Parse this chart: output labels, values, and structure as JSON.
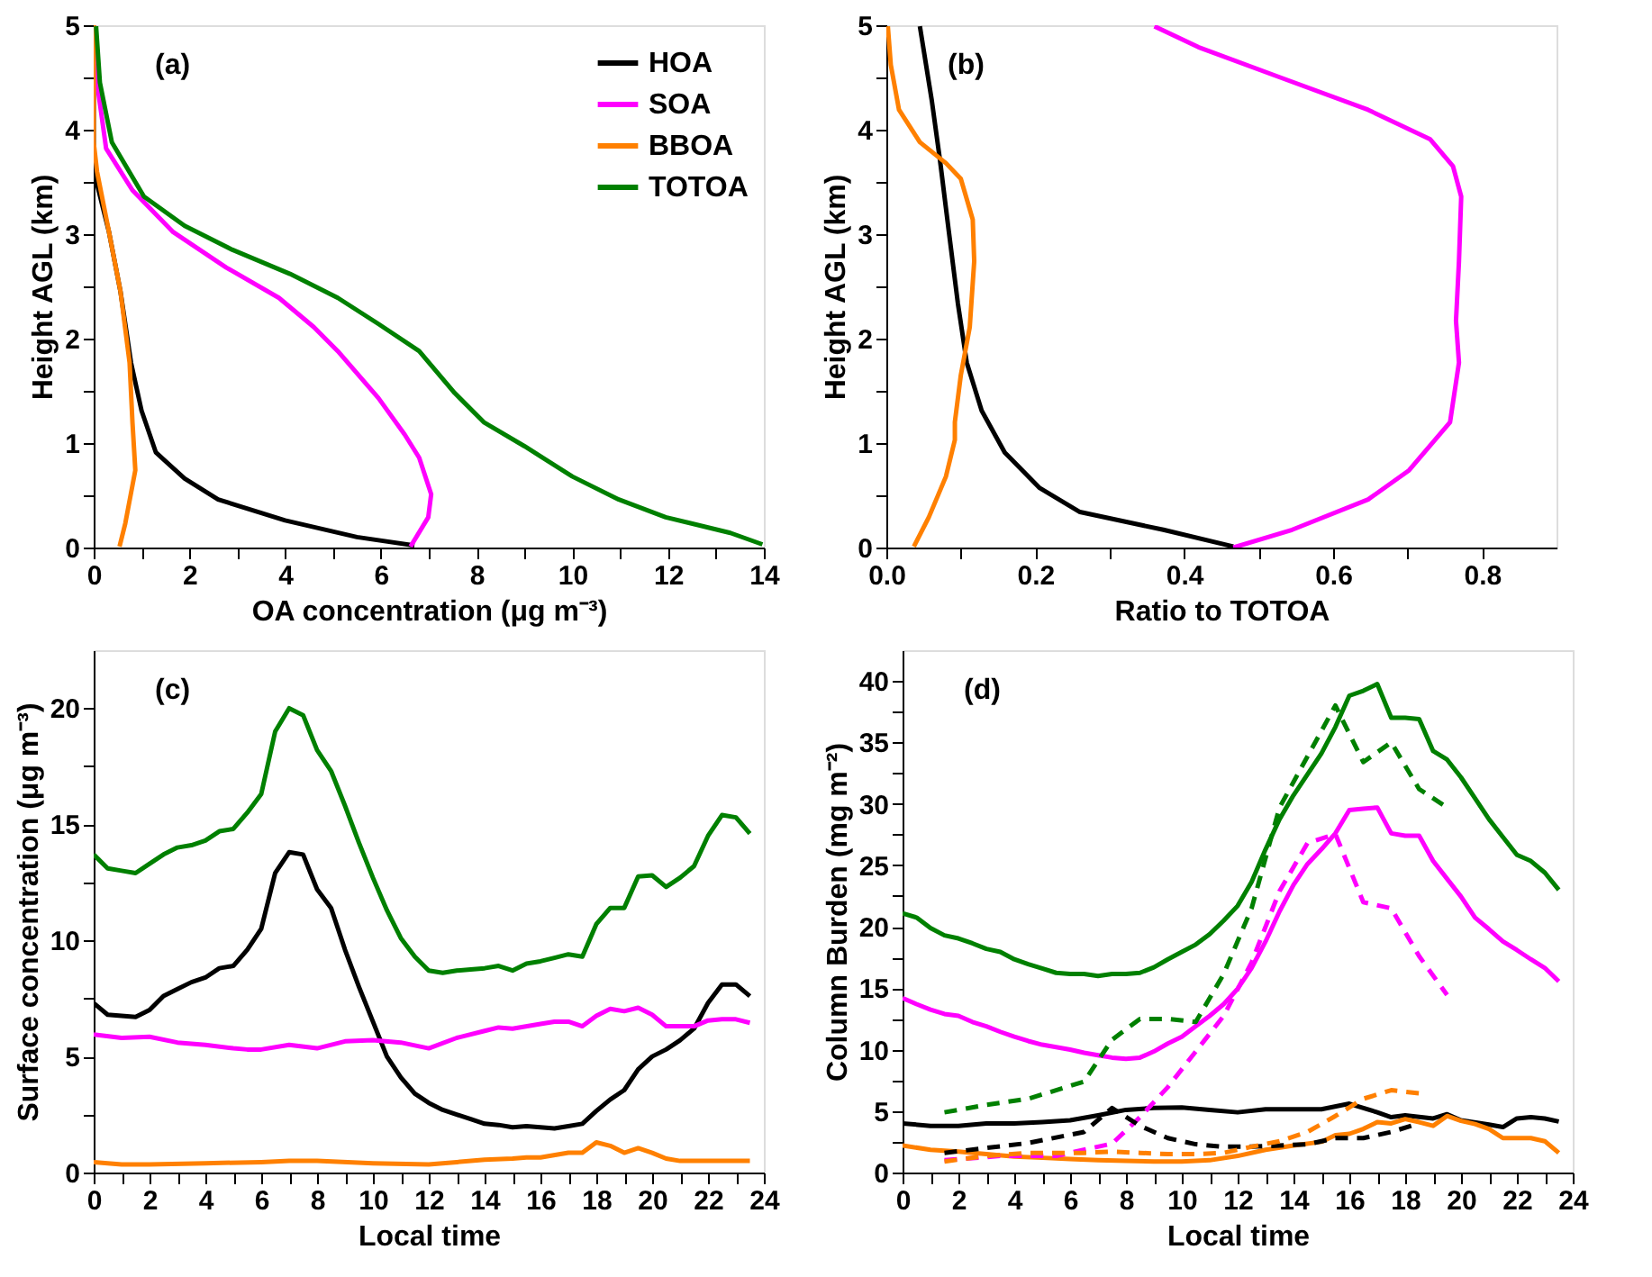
{
  "chart_data": [
    {
      "type": "line",
      "xlabel": "OA concentration (μg m⁻³)",
      "ylabel": "Height AGL (km)",
      "annotations": [
        "(a)"
      ],
      "legend": "top right",
      "xlim": [
        0,
        14
      ],
      "ylim": [
        0,
        5
      ],
      "xticks": [
        0,
        {
          "value": 1,
          "label": null
        },
        2,
        {
          "value": 3,
          "label": null
        },
        4,
        {
          "value": 5,
          "label": null
        },
        6,
        {
          "value": 7,
          "label": null
        },
        8,
        {
          "value": 9,
          "label": null
        },
        10,
        {
          "value": 11,
          "label": null
        },
        12,
        {
          "value": 13,
          "label": null
        },
        14
      ],
      "yticks": [
        0,
        {
          "value": 0.5,
          "label": null
        },
        1,
        {
          "value": 1.5,
          "label": null
        },
        2,
        {
          "value": 2.5,
          "label": null
        },
        3,
        {
          "value": 3.5,
          "label": null
        },
        4,
        {
          "value": 4.5,
          "label": null
        },
        5
      ],
      "series": [
        {
          "name": "HOA",
          "color": "#000000",
          "x": [
            6.7,
            5.5,
            4.0,
            2.6,
            1.9,
            1.3,
            1.0,
            0.78,
            0.56,
            0.32,
            0.07,
            0.0,
            0.0
          ],
          "values": [
            0.02,
            0.1,
            0.26,
            0.46,
            0.66,
            0.91,
            1.31,
            1.77,
            2.45,
            3.02,
            3.48,
            3.6,
            5.0
          ]
        },
        {
          "name": "SOA",
          "color": "#ff00ff",
          "x": [
            6.62,
            6.99,
            7.05,
            6.8,
            6.5,
            5.95,
            5.1,
            4.6,
            3.87,
            2.77,
            1.66,
            0.81,
            0.26,
            0.07,
            0.01
          ],
          "values": [
            0.01,
            0.29,
            0.51,
            0.86,
            1.08,
            1.43,
            1.88,
            2.11,
            2.39,
            2.68,
            3.02,
            3.42,
            3.82,
            4.45,
            4.96
          ]
        },
        {
          "name": "BBOA",
          "color": "#ff8000",
          "x": [
            0.54,
            0.66,
            0.87,
            0.81,
            0.75,
            0.56,
            0.32,
            0.07,
            0.0,
            0.0
          ],
          "values": [
            0.01,
            0.23,
            0.74,
            1.2,
            1.77,
            2.45,
            3.02,
            3.6,
            3.88,
            5.0
          ]
        },
        {
          "name": "TOTOA",
          "color": "#008000",
          "x": [
            13.97,
            13.3,
            11.95,
            10.97,
            10.0,
            9.0,
            8.15,
            7.54,
            6.8,
            5.95,
            5.1,
            4.1,
            2.9,
            1.9,
            1.05,
            0.38,
            0.13,
            0.05
          ],
          "values": [
            0.03,
            0.14,
            0.29,
            0.46,
            0.68,
            0.97,
            1.2,
            1.48,
            1.88,
            2.14,
            2.39,
            2.62,
            2.85,
            3.08,
            3.36,
            3.88,
            4.45,
            4.99
          ]
        }
      ]
    },
    {
      "type": "line",
      "xlabel": "Ratio to TOTOA",
      "ylabel": "Height AGL (km)",
      "annotations": [
        "(b)"
      ],
      "xlim": [
        0,
        0.9
      ],
      "ylim": [
        0,
        5
      ],
      "xticks": [
        {
          "value": 0,
          "label": "0.0"
        },
        {
          "value": 0.1,
          "label": null
        },
        0.2,
        {
          "value": 0.3,
          "label": null
        },
        0.4,
        {
          "value": 0.5,
          "label": null
        },
        0.6,
        {
          "value": 0.7,
          "label": null
        },
        0.8
      ],
      "yticks": [
        0,
        {
          "value": 0.5,
          "label": null
        },
        1,
        {
          "value": 1.5,
          "label": null
        },
        2,
        {
          "value": 2.5,
          "label": null
        },
        3,
        {
          "value": 3.5,
          "label": null
        },
        4,
        {
          "value": 4.5,
          "label": null
        },
        5
      ],
      "series": [
        {
          "color": "#000000",
          "x": [
            0.466,
            0.372,
            0.26,
            0.206,
            0.159,
            0.128,
            0.108,
            0.096,
            0.084,
            0.072,
            0.061,
            0.045
          ],
          "values": [
            0.01,
            0.17,
            0.34,
            0.57,
            0.91,
            1.31,
            1.77,
            2.34,
            3.02,
            3.71,
            4.28,
            4.99
          ]
        },
        {
          "color": "#ff00ff",
          "x": [
            0.466,
            0.545,
            0.647,
            0.702,
            0.757,
            0.769,
            0.765,
            0.769,
            0.772,
            0.761,
            0.73,
            0.647,
            0.529,
            0.419,
            0.36
          ],
          "values": [
            0.0,
            0.17,
            0.46,
            0.74,
            1.2,
            1.77,
            2.17,
            2.74,
            3.36,
            3.65,
            3.91,
            4.19,
            4.5,
            4.79,
            4.99
          ]
        },
        {
          "color": "#ff8000",
          "x": [
            0.037,
            0.057,
            0.08,
            0.092,
            0.092,
            0.1,
            0.112,
            0.118,
            0.116,
            0.1,
            0.08,
            0.045,
            0.017,
            0.006,
            0.002
          ],
          "values": [
            0.01,
            0.29,
            0.68,
            1.03,
            1.2,
            1.65,
            2.11,
            2.74,
            3.14,
            3.53,
            3.68,
            3.88,
            4.19,
            4.62,
            4.99
          ]
        }
      ]
    },
    {
      "type": "line",
      "xlabel": "Local time",
      "ylabel": "Surface concentration (μg m⁻³)",
      "annotations": [
        "(c)"
      ],
      "xlim": [
        0,
        24
      ],
      "ylim": [
        0,
        22.5
      ],
      "xticks": [
        0,
        {
          "value": 1,
          "label": null
        },
        2,
        {
          "value": 3,
          "label": null
        },
        4,
        {
          "value": 5,
          "label": null
        },
        6,
        {
          "value": 7,
          "label": null
        },
        8,
        {
          "value": 9,
          "label": null
        },
        10,
        {
          "value": 11,
          "label": null
        },
        12,
        {
          "value": 13,
          "label": null
        },
        14,
        {
          "value": 15,
          "label": null
        },
        16,
        {
          "value": 17,
          "label": null
        },
        18,
        {
          "value": 19,
          "label": null
        },
        20,
        {
          "value": 21,
          "label": null
        },
        22,
        {
          "value": 23,
          "label": null
        },
        24
      ],
      "yticks": [
        0,
        {
          "value": 2.5,
          "label": null
        },
        5,
        {
          "value": 7.5,
          "label": null
        },
        10,
        {
          "value": 12.5,
          "label": null
        },
        15,
        {
          "value": 17.5,
          "label": null
        },
        20
      ],
      "series": [
        {
          "color": "#008000",
          "x": [
            0,
            0.5,
            1,
            1.5,
            2,
            2.5,
            3,
            3.5,
            4,
            4.5,
            5,
            5.5,
            6,
            6.5,
            7,
            7.5,
            8,
            8.5,
            9,
            9.5,
            10,
            10.5,
            11,
            11.5,
            12,
            12.5,
            13,
            13.5,
            14,
            14.5,
            15,
            15.5,
            16,
            16.5,
            17,
            17.5,
            18,
            18.5,
            19,
            19.5,
            20,
            20.5,
            21,
            21.5,
            22,
            22.5,
            23,
            23.5
          ],
          "values": [
            13.7,
            13.1,
            13.0,
            12.9,
            13.3,
            13.7,
            14.0,
            14.1,
            14.3,
            14.7,
            14.8,
            15.5,
            16.3,
            19.0,
            20.0,
            19.7,
            18.2,
            17.3,
            15.8,
            14.2,
            12.7,
            11.3,
            10.1,
            9.3,
            8.7,
            8.6,
            8.7,
            8.75,
            8.8,
            8.9,
            8.7,
            9.0,
            9.1,
            9.25,
            9.4,
            9.3,
            10.7,
            11.4,
            11.4,
            12.75,
            12.8,
            12.3,
            12.7,
            13.2,
            14.5,
            15.4,
            15.3,
            14.6
          ]
        },
        {
          "color": "#000000",
          "x": [
            0,
            0.5,
            1,
            1.5,
            2,
            2.5,
            3,
            3.5,
            4,
            4.5,
            5,
            5.5,
            6,
            6.5,
            7,
            7.5,
            8,
            8.5,
            9,
            9.5,
            10,
            10.5,
            11,
            11.5,
            12,
            12.5,
            13,
            13.5,
            14,
            14.5,
            15,
            15.5,
            16,
            16.5,
            17,
            17.5,
            18,
            18.5,
            19,
            19.5,
            20,
            20.5,
            21,
            21.5,
            22,
            22.5,
            23,
            23.5
          ],
          "values": [
            7.3,
            6.8,
            6.75,
            6.7,
            7.0,
            7.6,
            7.9,
            8.2,
            8.4,
            8.8,
            8.9,
            9.6,
            10.5,
            12.9,
            13.8,
            13.7,
            12.2,
            11.4,
            9.6,
            8.0,
            6.5,
            5.0,
            4.1,
            3.4,
            3.0,
            2.7,
            2.5,
            2.3,
            2.1,
            2.05,
            1.95,
            2.0,
            1.95,
            1.9,
            2.0,
            2.1,
            2.65,
            3.15,
            3.55,
            4.45,
            5.0,
            5.3,
            5.7,
            6.2,
            7.3,
            8.1,
            8.1,
            7.6
          ]
        },
        {
          "color": "#ff00ff",
          "x": [
            0,
            1,
            2,
            3,
            4,
            5,
            5.5,
            6,
            7,
            8,
            9,
            10,
            11,
            12,
            13,
            14,
            14.5,
            15,
            16,
            16.5,
            17,
            17.5,
            18,
            18.5,
            19,
            19.5,
            20,
            20.5,
            21,
            21.5,
            22,
            22.5,
            23,
            23.5
          ],
          "values": [
            5.95,
            5.8,
            5.85,
            5.6,
            5.5,
            5.35,
            5.3,
            5.3,
            5.5,
            5.35,
            5.65,
            5.7,
            5.6,
            5.35,
            5.8,
            6.1,
            6.25,
            6.2,
            6.4,
            6.5,
            6.5,
            6.3,
            6.75,
            7.05,
            6.95,
            7.1,
            6.8,
            6.3,
            6.3,
            6.3,
            6.55,
            6.6,
            6.6,
            6.45
          ]
        },
        {
          "color": "#ff8000",
          "x": [
            0,
            1,
            2,
            4,
            6,
            7,
            8,
            10,
            12,
            13,
            14,
            15,
            15.5,
            16,
            17,
            17.5,
            18,
            18.5,
            19,
            19.5,
            20,
            20.5,
            21,
            22,
            23,
            23.5
          ],
          "values": [
            0.45,
            0.35,
            0.35,
            0.4,
            0.45,
            0.5,
            0.5,
            0.4,
            0.35,
            0.45,
            0.55,
            0.6,
            0.65,
            0.65,
            0.85,
            0.85,
            1.3,
            1.15,
            0.85,
            1.05,
            0.85,
            0.6,
            0.5,
            0.5,
            0.5,
            0.5
          ]
        }
      ]
    },
    {
      "type": "line",
      "xlabel": "Local time",
      "ylabel": "Column Burden (mg m⁻²)",
      "annotations": [
        "(d)"
      ],
      "xlim": [
        0,
        24
      ],
      "ylim": [
        0,
        42.5
      ],
      "xticks": [
        0,
        {
          "value": 1,
          "label": null
        },
        2,
        {
          "value": 3,
          "label": null
        },
        4,
        {
          "value": 5,
          "label": null
        },
        6,
        {
          "value": 7,
          "label": null
        },
        8,
        {
          "value": 9,
          "label": null
        },
        10,
        {
          "value": 11,
          "label": null
        },
        12,
        {
          "value": 13,
          "label": null
        },
        14,
        {
          "value": 15,
          "label": null
        },
        16,
        {
          "value": 17,
          "label": null
        },
        18,
        {
          "value": 19,
          "label": null
        },
        20,
        {
          "value": 21,
          "label": null
        },
        22,
        {
          "value": 23,
          "label": null
        },
        24
      ],
      "yticks": [
        0,
        {
          "value": 2.5,
          "label": null
        },
        5,
        {
          "value": 7.5,
          "label": null
        },
        10,
        {
          "value": 12.5,
          "label": null
        },
        15,
        {
          "value": 17.5,
          "label": null
        },
        20,
        {
          "value": 22.5,
          "label": null
        },
        25,
        {
          "value": 27.5,
          "label": null
        },
        30,
        {
          "value": 32.5,
          "label": null
        },
        35,
        {
          "value": 37.5,
          "label": null
        },
        40
      ],
      "series": [
        {
          "color": "#008000",
          "x": [
            0,
            0.5,
            1,
            1.5,
            2,
            2.5,
            3,
            3.5,
            4,
            4.5,
            5,
            5.5,
            6,
            6.5,
            7,
            7.5,
            8,
            8.5,
            9,
            9.5,
            10,
            10.5,
            11,
            11.5,
            12,
            12.5,
            13,
            13.5,
            14,
            14.5,
            15,
            15.5,
            16,
            16.5,
            17,
            17.5,
            18,
            18.5,
            19,
            19.5,
            20,
            20.5,
            21,
            21.5,
            22,
            22.5,
            23,
            23.5
          ],
          "values": [
            21.1,
            20.75,
            19.9,
            19.3,
            19.05,
            18.65,
            18.2,
            17.95,
            17.35,
            16.95,
            16.6,
            16.25,
            16.15,
            16.15,
            16.0,
            16.15,
            16.15,
            16.25,
            16.7,
            17.35,
            17.95,
            18.55,
            19.4,
            20.5,
            21.7,
            23.65,
            26.3,
            28.75,
            30.7,
            32.4,
            34.1,
            36.25,
            38.8,
            39.2,
            39.75,
            37.0,
            37.0,
            36.9,
            34.3,
            33.6,
            32.15,
            30.45,
            28.75,
            27.3,
            25.85,
            25.35,
            24.4,
            23.0
          ]
        },
        {
          "color": "#ff00ff",
          "x": [
            0,
            0.5,
            1,
            1.5,
            2,
            2.5,
            3,
            3.5,
            4,
            4.5,
            5,
            5.5,
            6,
            6.5,
            7,
            7.5,
            8,
            8.5,
            9,
            9.5,
            10,
            10.5,
            11,
            11.5,
            12,
            12.5,
            13,
            13.5,
            14,
            14.5,
            15,
            15.5,
            16,
            16.5,
            17,
            17.5,
            18,
            18.5,
            19,
            19.5,
            20,
            20.5,
            21,
            21.5,
            22,
            22.5,
            23,
            23.5
          ],
          "values": [
            14.2,
            13.7,
            13.25,
            12.9,
            12.75,
            12.25,
            11.9,
            11.45,
            11.05,
            10.7,
            10.4,
            10.2,
            10.0,
            9.75,
            9.55,
            9.35,
            9.25,
            9.35,
            9.85,
            10.5,
            11.05,
            11.9,
            12.75,
            13.7,
            14.95,
            16.65,
            18.8,
            21.25,
            23.4,
            25.1,
            26.3,
            27.6,
            29.5,
            29.6,
            29.7,
            27.6,
            27.4,
            27.4,
            25.35,
            23.9,
            22.45,
            20.75,
            19.8,
            18.8,
            18.1,
            17.35,
            16.65,
            15.55
          ]
        },
        {
          "color": "#000000",
          "x": [
            0,
            1,
            2,
            3,
            4,
            5,
            6,
            7,
            8,
            9,
            10,
            11,
            12,
            13,
            14,
            15,
            16,
            17,
            17.5,
            18,
            19,
            19.5,
            20,
            21,
            21.5,
            22,
            22.5,
            23,
            23.5
          ],
          "values": [
            4.0,
            3.8,
            3.8,
            4.0,
            4.0,
            4.1,
            4.25,
            4.65,
            5.1,
            5.25,
            5.3,
            5.1,
            4.9,
            5.15,
            5.15,
            5.15,
            5.6,
            4.9,
            4.5,
            4.65,
            4.4,
            4.75,
            4.25,
            3.9,
            3.7,
            4.4,
            4.5,
            4.4,
            4.15
          ]
        },
        {
          "color": "#ff8000",
          "x": [
            0,
            1,
            2,
            3,
            4,
            5,
            6,
            7,
            8,
            9,
            10,
            11,
            12,
            13,
            14,
            15,
            15.5,
            16,
            16.5,
            17,
            17.5,
            18,
            18.5,
            19,
            19.5,
            20,
            20.5,
            21,
            21.5,
            22,
            22.5,
            23,
            23.5
          ],
          "values": [
            2.2,
            1.85,
            1.7,
            1.5,
            1.3,
            1.2,
            1.1,
            1.0,
            0.95,
            0.9,
            0.9,
            1.0,
            1.35,
            1.85,
            2.2,
            2.5,
            3.05,
            3.15,
            3.55,
            4.1,
            4.0,
            4.35,
            4.1,
            3.8,
            4.6,
            4.2,
            3.95,
            3.55,
            2.8,
            2.8,
            2.8,
            2.55,
            1.6
          ]
        },
        {
          "color": "#008000",
          "line_style": "dashed",
          "x": [
            1.5,
            3,
            4.5,
            6.5,
            7.5,
            8.5,
            9.5,
            10.5,
            11.5,
            12.5,
            13.5,
            15.5,
            16.5,
            17.5,
            18.5,
            19.5
          ],
          "values": [
            4.9,
            5.5,
            6.0,
            7.4,
            10.8,
            12.5,
            12.5,
            12.25,
            16.15,
            21.5,
            29.7,
            38.0,
            33.4,
            35.0,
            31.2,
            29.7
          ]
        },
        {
          "color": "#ff00ff",
          "line_style": "dashed",
          "x": [
            1.5,
            3.5,
            5.5,
            7.5,
            8.5,
            9.5,
            10.5,
            11.5,
            12.5,
            13.5,
            14.5,
            15.5,
            16.5,
            17.5,
            18.5,
            19.5
          ],
          "values": [
            1.0,
            1.35,
            1.35,
            2.35,
            4.5,
            6.95,
            9.85,
            12.75,
            17.1,
            22.9,
            26.8,
            27.55,
            22.0,
            21.5,
            17.6,
            14.45
          ]
        },
        {
          "color": "#000000",
          "line_style": "dashed",
          "x": [
            1.5,
            3,
            4.5,
            6.5,
            7.5,
            8.5,
            9.5,
            10.5,
            11.5,
            12.5,
            13.5,
            14.5,
            15.5,
            16.5,
            17.5,
            18.5
          ],
          "values": [
            1.6,
            2.0,
            2.4,
            3.3,
            5.25,
            3.8,
            2.8,
            2.3,
            2.1,
            2.1,
            2.2,
            2.3,
            2.8,
            2.8,
            3.3,
            4.0
          ]
        },
        {
          "color": "#ff8000",
          "line_style": "dashed",
          "x": [
            1.5,
            3,
            4.5,
            6.5,
            7.5,
            8.5,
            9.5,
            10.5,
            11.5,
            12.5,
            13.5,
            14.5,
            15.5,
            16.5,
            17.5,
            18.5
          ],
          "values": [
            0.9,
            1.35,
            1.6,
            1.6,
            1.7,
            1.6,
            1.5,
            1.5,
            1.6,
            2.1,
            2.55,
            3.3,
            4.6,
            6.0,
            6.7,
            6.45
          ]
        }
      ]
    }
  ]
}
